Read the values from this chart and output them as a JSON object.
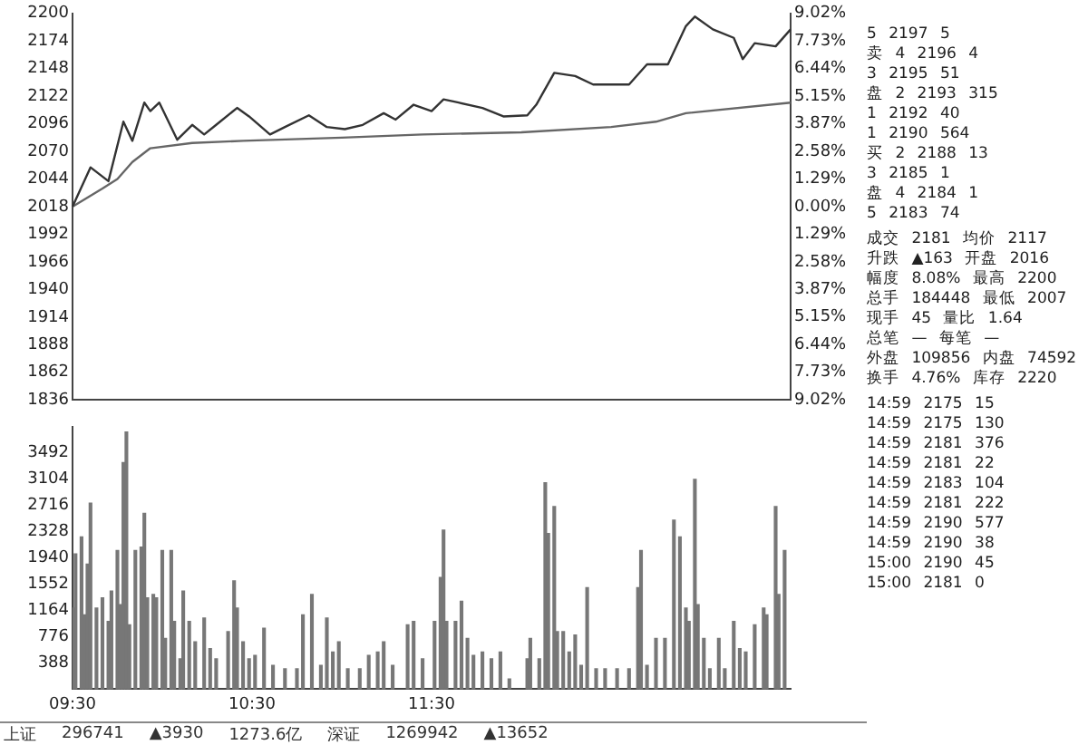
{
  "chart_data": [
    {
      "type": "line",
      "ylim": [
        1836,
        2200
      ],
      "yticks": [
        1836,
        1862,
        1888,
        1914,
        1940,
        1966,
        1992,
        2018,
        2044,
        2070,
        2096,
        2122,
        2148,
        2174,
        2200
      ],
      "y2lim": [
        -9.02,
        9.02
      ],
      "y2ticks": [
        {
          "value": -9.02,
          "label": "9.02%"
        },
        {
          "value": -7.73,
          "label": "7.73%"
        },
        {
          "value": -6.44,
          "label": "6.44%"
        },
        {
          "value": -5.15,
          "label": "5.15%"
        },
        {
          "value": -3.87,
          "label": "3.87%"
        },
        {
          "value": -2.58,
          "label": "2.58%"
        },
        {
          "value": -1.29,
          "label": "1.29%"
        },
        {
          "value": 0,
          "label": "0.00%"
        },
        {
          "value": 1.29,
          "label": "1.29%"
        },
        {
          "value": 2.58,
          "label": "2.58%"
        },
        {
          "value": 3.87,
          "label": "3.87%"
        },
        {
          "value": 5.15,
          "label": "5.15%"
        },
        {
          "value": 6.44,
          "label": "6.44%"
        },
        {
          "value": 7.73,
          "label": "7.73%"
        },
        {
          "value": 9.02,
          "label": "9.02%"
        }
      ],
      "tick_labels": "y",
      "grid": false,
      "legend": false,
      "series": [
        {
          "color": "#333333",
          "values": [
            2018,
            null,
            null,
            null,
            null,
            null,
            2055,
            null,
            null,
            null,
            null,
            null,
            2042,
            null,
            null,
            null,
            null,
            2098,
            null,
            null,
            2080,
            null,
            null,
            null,
            2116,
            null,
            2108,
            null,
            null,
            2116,
            null,
            null,
            null,
            null,
            null,
            2081,
            null,
            null,
            null,
            null,
            2095,
            null,
            null,
            null,
            2086,
            null,
            null,
            null,
            2095,
            null,
            null,
            null,
            null,
            null,
            null,
            2111,
            null,
            null,
            null,
            2103,
            null,
            null,
            null,
            null,
            null,
            null,
            2086,
            null,
            null,
            null,
            null,
            2093,
            null,
            null,
            null,
            null,
            null,
            null,
            null,
            2104,
            null,
            null,
            null,
            null,
            null,
            2093,
            null,
            null,
            null,
            null,
            null,
            2091,
            null,
            null,
            null,
            null,
            null,
            2095,
            null,
            null,
            null,
            null,
            null,
            null,
            2106,
            null,
            null,
            null,
            2100,
            null,
            null,
            null,
            null,
            null,
            2114,
            null,
            null,
            null,
            null,
            null,
            2108,
            null,
            null,
            null,
            2119,
            null,
            null,
            null,
            null,
            2116,
            null,
            null,
            null,
            null,
            null,
            null,
            null,
            2111,
            null,
            null,
            null,
            null,
            null,
            null,
            2103,
            null,
            null,
            null,
            null,
            null,
            null,
            null,
            2104,
            null,
            null,
            2114,
            null,
            null,
            null,
            null,
            null,
            2144,
            null,
            null,
            null,
            null,
            null,
            null,
            2141,
            null,
            null,
            null,
            null,
            null,
            2133,
            null,
            null,
            null,
            null,
            null,
            null,
            null,
            null,
            null,
            null,
            null,
            2133,
            null,
            null,
            null,
            null,
            null,
            2152,
            null,
            null,
            null,
            null,
            null,
            null,
            2152,
            null,
            null,
            null,
            null,
            null,
            2188,
            null,
            null,
            2197,
            null,
            null,
            null,
            null,
            null,
            2185,
            null,
            null,
            null,
            null,
            null,
            null,
            2177,
            null,
            null,
            2157,
            null,
            null,
            null,
            2172,
            null,
            null,
            null,
            null,
            null,
            null,
            2169,
            null,
            null,
            null,
            null,
            2185
          ]
        },
        {
          "color": "#666666",
          "values": [
            2018,
            null,
            null,
            null,
            null,
            null,
            null,
            null,
            null,
            null,
            2035,
            null,
            null,
            null,
            null,
            2044,
            null,
            null,
            null,
            null,
            2060,
            null,
            null,
            null,
            null,
            null,
            2073,
            null,
            null,
            null,
            null,
            null,
            null,
            null,
            null,
            null,
            null,
            null,
            null,
            null,
            2078,
            null,
            null,
            null,
            null,
            null,
            null,
            null,
            null,
            null,
            null,
            null,
            null,
            null,
            null,
            null,
            null,
            2080,
            null,
            null,
            null,
            null,
            null,
            null,
            null,
            null,
            null,
            null,
            null,
            null,
            null,
            null,
            null,
            null,
            null,
            null,
            null,
            null,
            null,
            null,
            null,
            null,
            null,
            null,
            null,
            null,
            null,
            null,
            null,
            null,
            2083,
            null,
            null,
            null,
            null,
            null,
            null,
            null,
            null,
            null,
            null,
            null,
            null,
            null,
            null,
            null,
            null,
            null,
            null,
            null,
            null,
            null,
            null,
            null,
            null,
            null,
            null,
            2086,
            null,
            null,
            null,
            null,
            null,
            null,
            null,
            null,
            null,
            null,
            null,
            null,
            null,
            null,
            null,
            null,
            null,
            null,
            null,
            null,
            null,
            null,
            null,
            null,
            null,
            null,
            null,
            null,
            null,
            null,
            null,
            null,
            2088,
            null,
            null,
            null,
            null,
            null,
            null,
            null,
            null,
            null,
            null,
            null,
            null,
            null,
            null,
            null,
            null,
            null,
            null,
            null,
            null,
            null,
            null,
            null,
            null,
            null,
            null,
            null,
            null,
            null,
            2093,
            null,
            null,
            null,
            null,
            null,
            null,
            null,
            null,
            null,
            null,
            null,
            null,
            null,
            null,
            2098,
            null,
            null,
            null,
            null,
            null,
            null,
            null,
            null,
            null,
            2106,
            null,
            null,
            null,
            null,
            null,
            null,
            null,
            null,
            null,
            null,
            null,
            null,
            null,
            null,
            null,
            null,
            null,
            null,
            null,
            null,
            null,
            null,
            null,
            null,
            null,
            null,
            null,
            null,
            null,
            null,
            null,
            null,
            null,
            null,
            2116
          ]
        }
      ]
    },
    {
      "type": "bar",
      "categories": [
        "09:30",
        null,
        null,
        null,
        null,
        null,
        null,
        null,
        null,
        null,
        null,
        null,
        null,
        null,
        null,
        null,
        null,
        null,
        null,
        null,
        null,
        null,
        null,
        null,
        null,
        null,
        null,
        null,
        null,
        null,
        null,
        null,
        null,
        null,
        null,
        null,
        null,
        null,
        null,
        null,
        null,
        null,
        null,
        null,
        null,
        null,
        null,
        null,
        null,
        null,
        null,
        null,
        null,
        null,
        null,
        null,
        null,
        null,
        null,
        null,
        "10:30",
        null,
        null,
        null,
        null,
        null,
        null,
        null,
        null,
        null,
        null,
        null,
        null,
        null,
        null,
        null,
        null,
        null,
        null,
        null,
        null,
        null,
        null,
        null,
        null,
        null,
        null,
        null,
        null,
        null,
        null,
        null,
        null,
        null,
        null,
        null,
        null,
        null,
        null,
        null,
        null,
        null,
        null,
        null,
        null,
        null,
        null,
        null,
        null,
        null,
        null,
        null,
        null,
        null,
        null,
        null,
        null,
        null,
        null,
        null,
        "11:30",
        null,
        null,
        null,
        null,
        null,
        null,
        null,
        null,
        null,
        null,
        null,
        null,
        null,
        null,
        null,
        null,
        null,
        null,
        null,
        null,
        null,
        null,
        null,
        null,
        null,
        null,
        null,
        null,
        null,
        null,
        null,
        null,
        null,
        null,
        null,
        null,
        null,
        null,
        null,
        null,
        null,
        null,
        null,
        null,
        null,
        null,
        null,
        null,
        null,
        null,
        null,
        null,
        null,
        null,
        null,
        null,
        null,
        null,
        null,
        null,
        null,
        null,
        null,
        null,
        null,
        null,
        null,
        null,
        null,
        null,
        null,
        null,
        null,
        null,
        null,
        null,
        null,
        null,
        null,
        null,
        null,
        null,
        null,
        null,
        null,
        null,
        null,
        null,
        null,
        null,
        null,
        null,
        null,
        null,
        null,
        null,
        null,
        null,
        null,
        null,
        null,
        null,
        null,
        null,
        null,
        null,
        null,
        null,
        null,
        null,
        null,
        null,
        null,
        null,
        null,
        null,
        null,
        null,
        null,
        null
      ],
      "ylim": [
        0,
        3880
      ],
      "yticks": [
        388,
        776,
        1164,
        1552,
        1940,
        2328,
        2716,
        3104,
        3492
      ],
      "grid": false,
      "legend": false,
      "color": "#777777",
      "values": [
        1200,
        2000,
        null,
        2250,
        1100,
        1850,
        2750,
        null,
        1200,
        null,
        1350,
        null,
        1000,
        1450,
        null,
        2050,
        1250,
        3350,
        3800,
        950,
        null,
        2050,
        null,
        2100,
        2600,
        1350,
        null,
        1400,
        1350,
        null,
        2050,
        750,
        null,
        2050,
        1000,
        null,
        450,
        1450,
        null,
        1000,
        null,
        700,
        null,
        null,
        1050,
        null,
        600,
        null,
        450,
        null,
        null,
        null,
        850,
        null,
        1600,
        1200,
        null,
        700,
        null,
        450,
        null,
        500,
        null,
        null,
        900,
        null,
        null,
        350,
        null,
        null,
        null,
        300,
        null,
        null,
        null,
        300,
        null,
        1100,
        null,
        null,
        1400,
        null,
        null,
        350,
        null,
        1050,
        null,
        550,
        null,
        700,
        null,
        null,
        300,
        null,
        null,
        null,
        300,
        null,
        null,
        500,
        null,
        null,
        550,
        null,
        700,
        null,
        null,
        350,
        null,
        null,
        null,
        null,
        950,
        null,
        1000,
        null,
        null,
        450,
        null,
        null,
        null,
        1000,
        null,
        1650,
        2350,
        1000,
        null,
        null,
        1000,
        null,
        1300,
        null,
        750,
        null,
        500,
        null,
        null,
        550,
        null,
        null,
        450,
        null,
        null,
        550,
        null,
        null,
        150,
        null,
        null,
        null,
        null,
        null,
        450,
        750,
        null,
        null,
        450,
        null,
        3050,
        2300,
        null,
        2700,
        850,
        null,
        850,
        null,
        550,
        null,
        800,
        null,
        350,
        null,
        1500,
        null,
        null,
        300,
        null,
        null,
        300,
        null,
        null,
        null,
        300,
        null,
        null,
        null,
        300,
        null,
        null,
        1500,
        2050,
        null,
        350,
        null,
        null,
        750,
        null,
        null,
        750,
        null,
        null,
        2500,
        null,
        2250,
        null,
        1200,
        1000,
        null,
        3100,
        1250,
        null,
        750,
        null,
        300,
        null,
        null,
        750,
        null,
        300,
        null,
        null,
        1000,
        null,
        600,
        null,
        550,
        null,
        null,
        950,
        null,
        null,
        1200,
        1100,
        null,
        null,
        2700,
        1400,
        null,
        2050,
        null,
        null
      ],
      "annotations": [
        "上证",
        "296741",
        "▲3930",
        "1273.6亿",
        "深证",
        "1269942",
        "▲13652"
      ]
    },
    {
      "type": "other",
      "annotations": [
        "5 2197 5",
        "卖 4 2196 4",
        "3 2195 51",
        "盘 2 2193 315",
        "1 2192 40",
        "1 2190 564",
        "买 2 2188 13",
        "3 2185 1",
        "盘 4 2184 1",
        "5 2183 74",
        "成交 2181 均价 2117",
        "升跌 ▲163 开盘 2016",
        "幅度 8.08% 最高 2200",
        "总手 184448 最低 2007",
        "现手 45 量比 1.64",
        "总笔 — 每笔 —",
        "外盘 109856 内盘 74592",
        "换手 4.76% 库存 2220",
        "14:59 2175 15",
        "14:59 2175 130",
        "14:59 2181 376",
        "14:59 2181 22",
        "14:59 2183 104",
        "14:59 2181 222",
        "14:59 2190 577",
        "14:59 2190 38",
        "15:00 2190 45",
        "15:00 2181 0"
      ]
    }
  ]
}
